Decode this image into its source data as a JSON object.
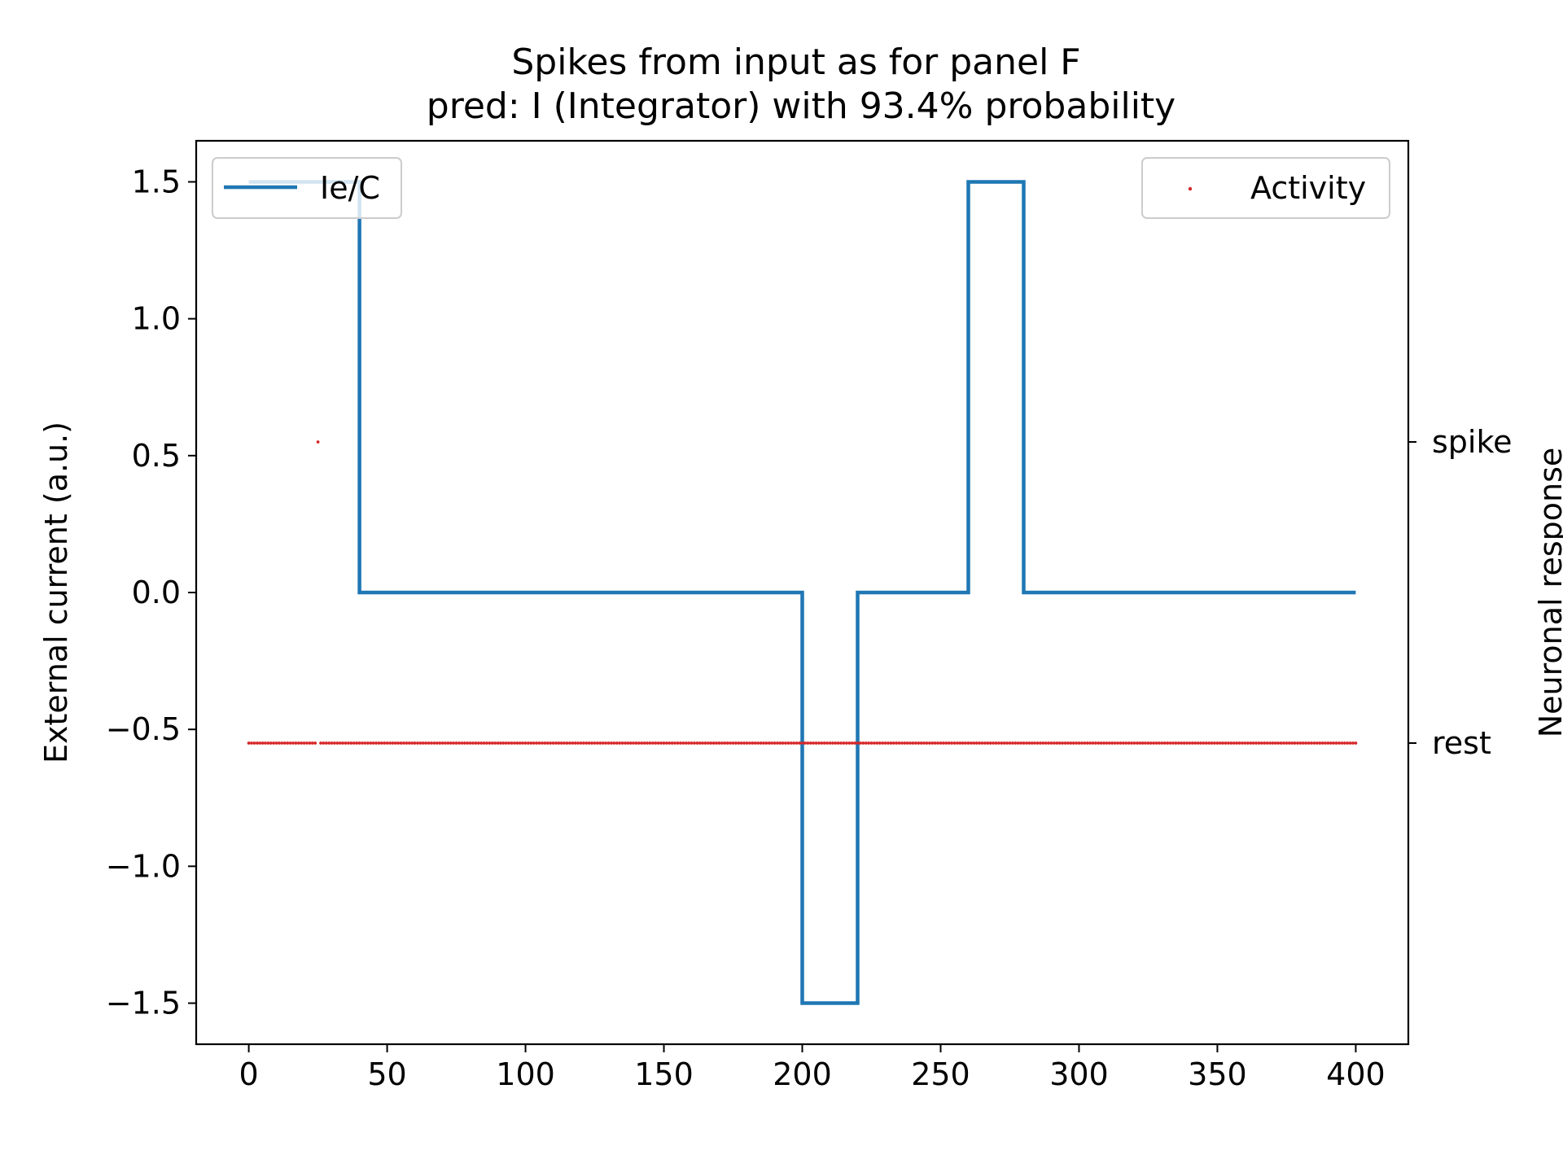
{
  "chart_data": {
    "type": "line",
    "title": "Spikes from input as for panel F",
    "subtitle": "pred: I (Integrator) with 93.4% probability",
    "xlabel": "",
    "ylabel": "External current (a.u.)",
    "ylabel_right": "Neuronal response",
    "xlim": [
      -19,
      419
    ],
    "ylim": [
      -1.65,
      1.65
    ],
    "x_ticks": [
      0,
      50,
      100,
      150,
      200,
      250,
      300,
      350,
      400
    ],
    "x_tick_labels": [
      "0",
      "50",
      "100",
      "150",
      "200",
      "250",
      "300",
      "350",
      "400"
    ],
    "y_ticks": [
      1.5,
      1.0,
      0.5,
      0.0,
      -0.5,
      -1.0,
      -1.5
    ],
    "y_tick_labels": [
      "1.5",
      "1.0",
      "0.5",
      "0.0",
      "−0.5",
      "−1.0",
      "−1.5"
    ],
    "right_ticks": [
      {
        "label": "spike",
        "value": 0.55
      },
      {
        "label": "rest",
        "value": -0.55
      }
    ],
    "grid": false,
    "series": [
      {
        "name": "Ie/C",
        "kind": "step-line",
        "color": "#1f77b4",
        "legend_position": "upper-left",
        "points": [
          [
            0,
            1.5
          ],
          [
            40,
            1.5
          ],
          [
            40,
            0
          ],
          [
            200,
            0
          ],
          [
            200,
            -1.5
          ],
          [
            220,
            -1.5
          ],
          [
            220,
            0
          ],
          [
            260,
            0
          ],
          [
            260,
            1.5
          ],
          [
            280,
            1.5
          ],
          [
            280,
            0
          ],
          [
            400,
            0
          ]
        ]
      },
      {
        "name": "Activity",
        "kind": "scatter",
        "color": "#d62728",
        "legend_position": "upper-right",
        "rest_value": -0.55,
        "spike_value": 0.55,
        "x_range": [
          0,
          400
        ],
        "spike_times": [
          25
        ]
      }
    ]
  }
}
